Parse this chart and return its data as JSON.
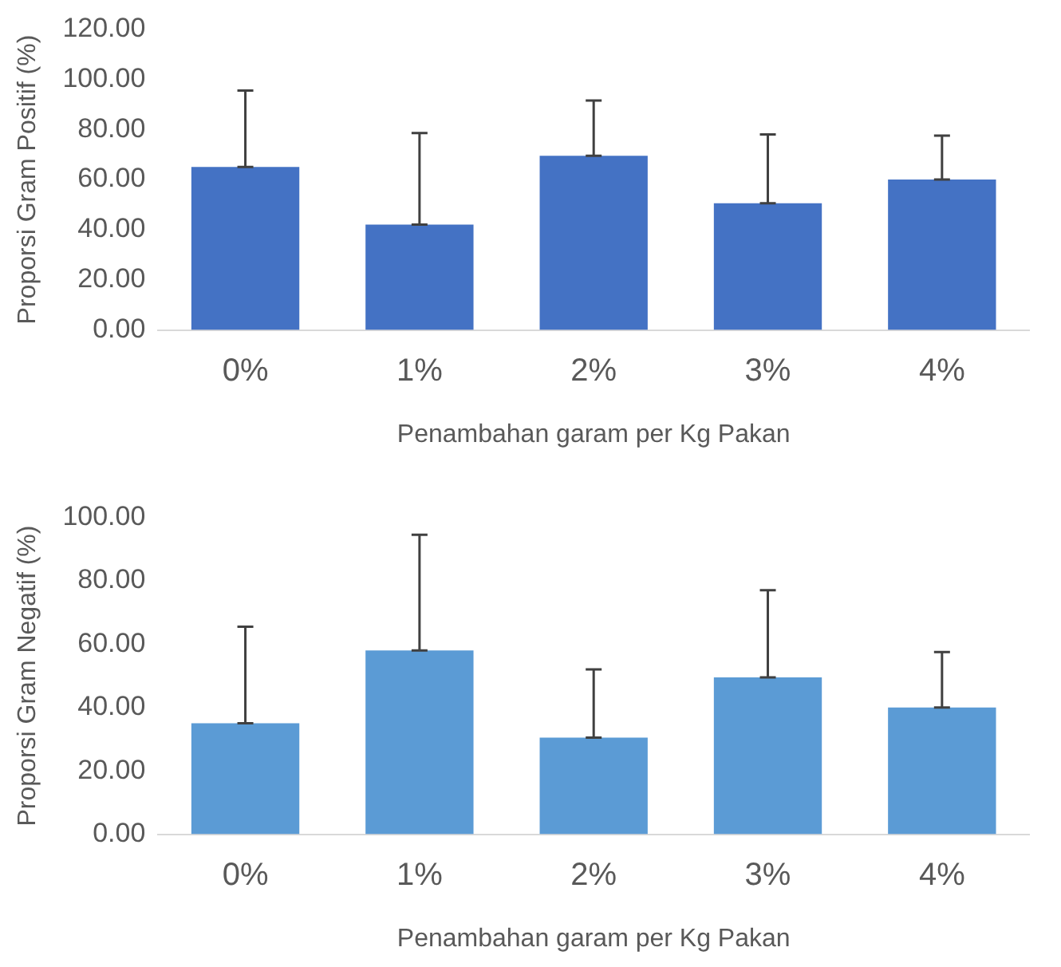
{
  "chart_data": [
    {
      "type": "bar",
      "xlabel": "Penambahan garam per Kg Pakan",
      "ylabel": "Proporsi Gram Positif (%)",
      "categories": [
        "0%",
        "1%",
        "2%",
        "3%",
        "4%"
      ],
      "values": [
        65,
        42,
        69.5,
        50.5,
        60
      ],
      "color": "#4472c4",
      "errors": [
        [
          65,
          95.5
        ],
        [
          42,
          78.5
        ],
        [
          69.5,
          91.5
        ],
        [
          50.5,
          78
        ],
        [
          60,
          77.5
        ]
      ],
      "ylim": [
        0,
        120
      ],
      "yticks": [
        {
          "value": 0,
          "label": "0.00"
        },
        {
          "value": 20,
          "label": "20.00"
        },
        {
          "value": 40,
          "label": "40.00"
        },
        {
          "value": 60,
          "label": "60.00"
        },
        {
          "value": 80,
          "label": "80.00"
        },
        {
          "value": 100,
          "label": "100.00"
        },
        {
          "value": 120,
          "label": "120.00"
        }
      ],
      "grid": false,
      "legend": false
    },
    {
      "type": "bar",
      "xlabel": "Penambahan garam per Kg Pakan",
      "ylabel": "Proporsi Gram Negatif (%)",
      "categories": [
        "0%",
        "1%",
        "2%",
        "3%",
        "4%"
      ],
      "values": [
        35,
        58,
        30.5,
        49.5,
        40
      ],
      "color": "#5b9bd5",
      "errors": [
        [
          35,
          65.5
        ],
        [
          58,
          94.5
        ],
        [
          30.5,
          52
        ],
        [
          49.5,
          77
        ],
        [
          40,
          57.5
        ]
      ],
      "ylim": [
        0,
        100
      ],
      "yticks": [
        {
          "value": 0,
          "label": "0.00"
        },
        {
          "value": 20,
          "label": "20.00"
        },
        {
          "value": 40,
          "label": "40.00"
        },
        {
          "value": 60,
          "label": "60.00"
        },
        {
          "value": 80,
          "label": "80.00"
        },
        {
          "value": 100,
          "label": "100.00"
        }
      ],
      "grid": false,
      "legend": false
    }
  ]
}
